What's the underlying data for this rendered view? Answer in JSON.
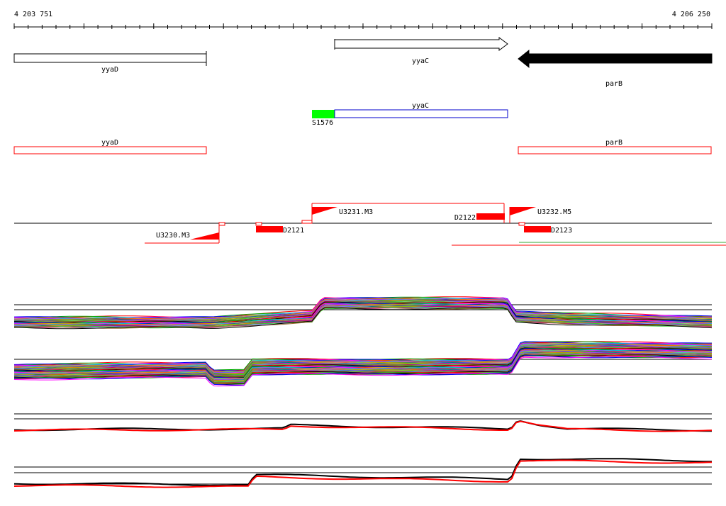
{
  "ruler": {
    "start_label": "4 203 751",
    "end_label": "4 206 250"
  },
  "genes": {
    "yyaD_top": "yyaD",
    "yyaC_top": "yyaC",
    "parB_top": "parB",
    "yyaC_mid": "yyaC",
    "s_label": "S1576",
    "yyaD_bottom": "yyaD",
    "parB_bottom": "parB"
  },
  "features": {
    "u3230": "U3230.M3",
    "d2121": "D2121",
    "u3231": "U3231.M3",
    "d2122": "D2122",
    "u3232": "U3232.M5",
    "d2123": "D2123"
  },
  "colors": {
    "feature_red": "#ff0000",
    "promoter_green": "#00ff00",
    "gene_blue": "#0000cc",
    "filled_arrow": "#000000"
  }
}
